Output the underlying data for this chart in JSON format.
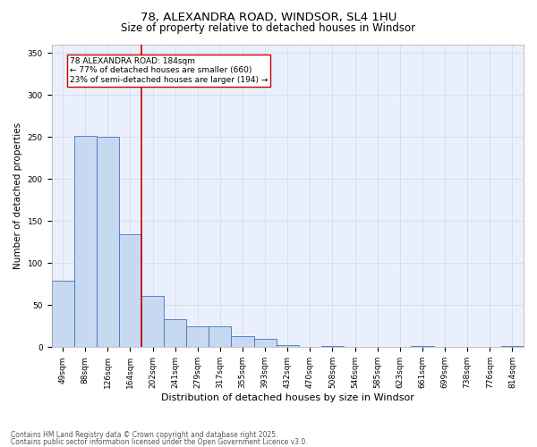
{
  "title1": "78, ALEXANDRA ROAD, WINDSOR, SL4 1HU",
  "title2": "Size of property relative to detached houses in Windsor",
  "xlabel": "Distribution of detached houses by size in Windsor",
  "ylabel": "Number of detached properties",
  "categories": [
    "49sqm",
    "88sqm",
    "126sqm",
    "164sqm",
    "202sqm",
    "241sqm",
    "279sqm",
    "317sqm",
    "355sqm",
    "393sqm",
    "432sqm",
    "470sqm",
    "508sqm",
    "546sqm",
    "585sqm",
    "623sqm",
    "661sqm",
    "699sqm",
    "738sqm",
    "776sqm",
    "814sqm"
  ],
  "values": [
    79,
    252,
    250,
    134,
    61,
    33,
    25,
    25,
    13,
    10,
    3,
    0,
    1,
    0,
    0,
    0,
    1,
    0,
    0,
    0,
    1
  ],
  "bar_color": "#c6d9f0",
  "bar_edge_color": "#4472c4",
  "grid_color": "#d0d8e8",
  "background_color": "#eaf0fb",
  "vline_x": 3.5,
  "vline_color": "#cc0000",
  "annotation_line1": "78 ALEXANDRA ROAD: 184sqm",
  "annotation_line2": "← 77% of detached houses are smaller (660)",
  "annotation_line3": "23% of semi-detached houses are larger (194) →",
  "annotation_box_color": "#cc0000",
  "annotation_box_fill": "#ffffff",
  "ylim": [
    0,
    360
  ],
  "yticks": [
    0,
    50,
    100,
    150,
    200,
    250,
    300,
    350
  ],
  "footer1": "Contains HM Land Registry data © Crown copyright and database right 2025.",
  "footer2": "Contains public sector information licensed under the Open Government Licence v3.0.",
  "title1_fontsize": 9.5,
  "title2_fontsize": 8.5,
  "xlabel_fontsize": 8,
  "ylabel_fontsize": 7.5,
  "tick_fontsize": 6.5,
  "annotation_fontsize": 6.5,
  "footer_fontsize": 5.5
}
